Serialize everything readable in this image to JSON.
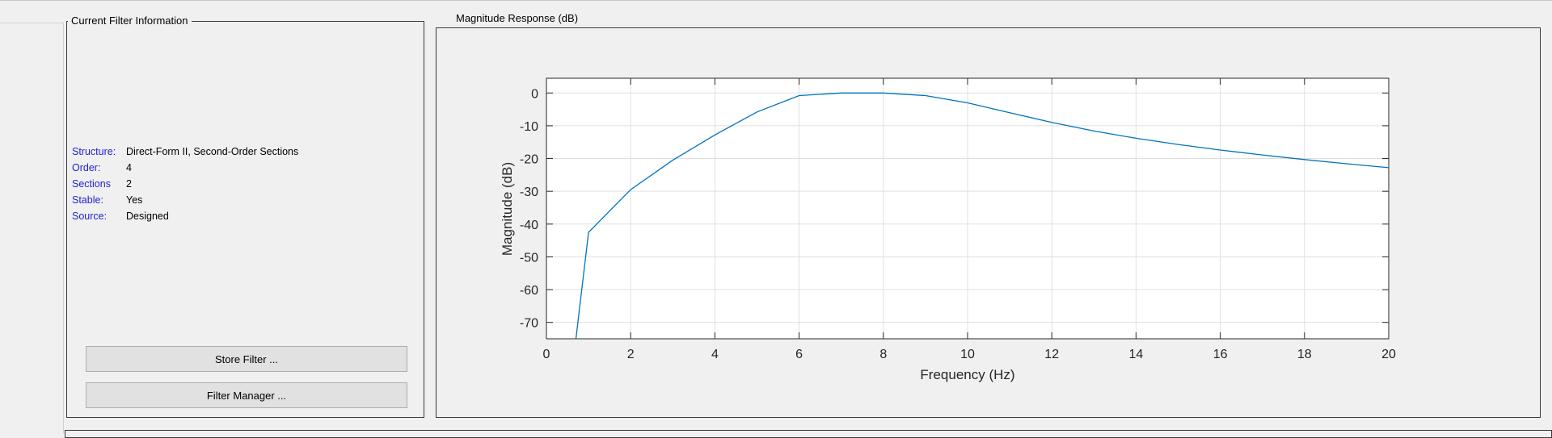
{
  "filter_info": {
    "title": "Current Filter Information",
    "rows": [
      {
        "label": "Structure:",
        "value": "Direct-Form II, Second-Order Sections"
      },
      {
        "label": "Order:",
        "value": "4"
      },
      {
        "label": "Sections",
        "value": "2"
      },
      {
        "label": "Stable:",
        "value": "Yes"
      },
      {
        "label": "Source:",
        "value": "Designed"
      }
    ],
    "store_button": "Store Filter ...",
    "manager_button": "Filter Manager ..."
  },
  "response_panel": {
    "title": "Magnitude Response (dB)"
  },
  "chart_data": {
    "type": "line",
    "xlabel": "Frequency (Hz)",
    "ylabel": "Magnitude (dB)",
    "xlim": [
      0,
      20
    ],
    "ylim": [
      -75,
      4.5
    ],
    "xticks": [
      0,
      2,
      4,
      6,
      8,
      10,
      12,
      14,
      16,
      18,
      20
    ],
    "yticks": [
      0,
      -10,
      -20,
      -30,
      -40,
      -50,
      -60,
      -70
    ],
    "grid": true,
    "colors": {
      "line": "#0072bd",
      "grid": "#dfdfdf",
      "axes": "#262626"
    },
    "x": [
      0.7,
      1,
      2,
      3,
      4,
      5,
      6,
      7,
      8,
      9,
      10,
      11,
      12,
      13,
      14,
      15,
      16,
      17,
      18,
      19,
      20
    ],
    "y": [
      -75,
      -42.5,
      -29.5,
      -20.5,
      -12.8,
      -5.8,
      -0.8,
      0,
      0,
      -0.8,
      -3,
      -6,
      -9,
      -11.6,
      -13.8,
      -15.7,
      -17.4,
      -18.9,
      -20.3,
      -21.6,
      -22.8
    ]
  }
}
